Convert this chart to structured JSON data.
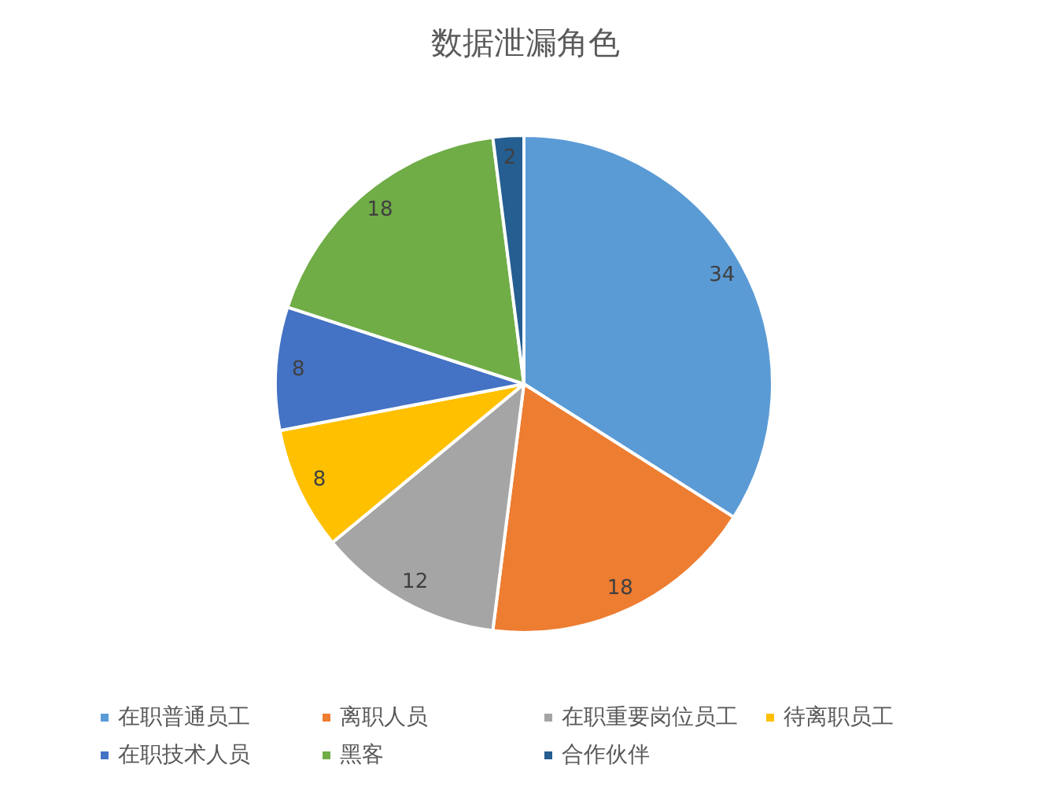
{
  "chart_data": {
    "type": "pie",
    "title": "数据泄漏角色",
    "categories": [
      "在职普通员工",
      "离职人员",
      "在职重要岗位员工",
      "待离职员工",
      "在职技术人员",
      "黑客",
      "合作伙伴"
    ],
    "values": [
      34,
      18,
      12,
      8,
      8,
      18,
      2
    ],
    "colors": [
      "#5b9bd5",
      "#ed7d31",
      "#a5a5a5",
      "#ffc000",
      "#4472c4",
      "#70ad47",
      "#255e91"
    ],
    "data_labels": true,
    "legend": "bottom"
  }
}
